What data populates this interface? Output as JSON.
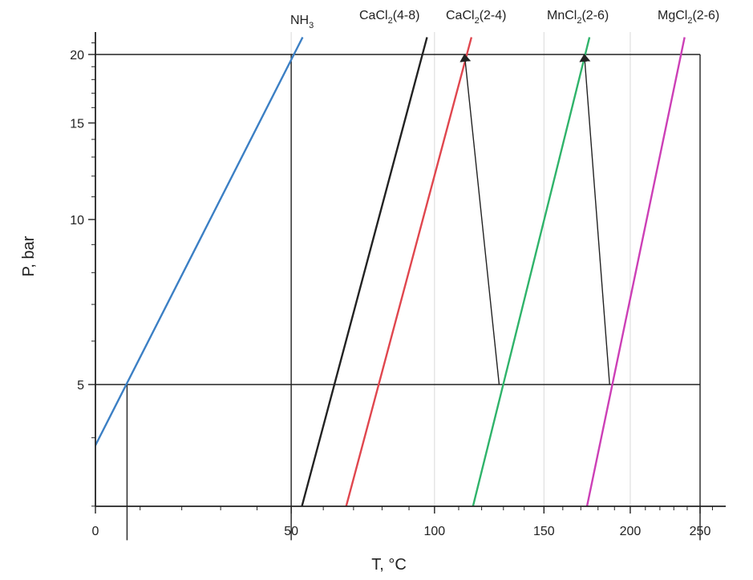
{
  "chart_data": {
    "type": "line",
    "xlabel": "T, °C",
    "ylabel": "P, bar",
    "x_scale": "reciprocal-kelvin",
    "y_scale": "log",
    "xlim": [
      0,
      260
    ],
    "ylim": [
      2.5,
      22
    ],
    "x_ticks": [
      0,
      50,
      100,
      150,
      200,
      250
    ],
    "y_ticks": [
      5,
      10,
      15,
      20
    ],
    "grid": "vertical at x ticks (light)",
    "series": [
      {
        "name": "NH3",
        "label": "NH",
        "sub": "3",
        "color": "#3b7fc4",
        "points": [
          [
            -0.5,
            3.8
          ],
          [
            53.5,
            21.5
          ]
        ]
      },
      {
        "name": "CaCl2(4-8)",
        "label": "CaCl",
        "sub": "2",
        "suffix": "(4-8)",
        "color": "#222222",
        "points": [
          [
            50.5,
            2.6
          ],
          [
            97,
            21.5
          ]
        ]
      },
      {
        "name": "CaCl2(2-4)",
        "label": "CaCl",
        "sub": "2",
        "suffix": "(2-4)",
        "color": "#e0464e",
        "points": [
          [
            64.5,
            2.6
          ],
          [
            115.5,
            21.5
          ]
        ]
      },
      {
        "name": "MnCl2(2-6)",
        "label": "MnCl",
        "sub": "2",
        "suffix": "(2-6)",
        "color": "#2fb36a",
        "points": [
          [
            112.5,
            2.6
          ],
          [
            175,
            21.5
          ]
        ]
      },
      {
        "name": "MgCl2(2-6)",
        "label": "MgCl",
        "sub": "2",
        "suffix": "(2-6)",
        "color": "#cc3fb6",
        "points": [
          [
            169.5,
            2.6
          ],
          [
            238,
            21.5
          ]
        ]
      }
    ],
    "reference_lines": [
      {
        "orientation": "horizontal",
        "y": 20,
        "x_range": [
          0,
          250
        ]
      },
      {
        "orientation": "horizontal",
        "y": 5,
        "x_range": [
          0,
          250
        ]
      },
      {
        "orientation": "vertical",
        "x": 50,
        "y_range": [
          2.6,
          20
        ]
      },
      {
        "orientation": "vertical",
        "x": 7,
        "y_range": [
          2.6,
          5
        ]
      },
      {
        "orientation": "vertical",
        "x": 250,
        "y_range": [
          2.6,
          20
        ]
      }
    ],
    "arrows": [
      {
        "from": [
          128,
          5
        ],
        "to": [
          112.5,
          20
        ]
      },
      {
        "from": [
          187,
          5
        ],
        "to": [
          172,
          20
        ]
      }
    ]
  }
}
